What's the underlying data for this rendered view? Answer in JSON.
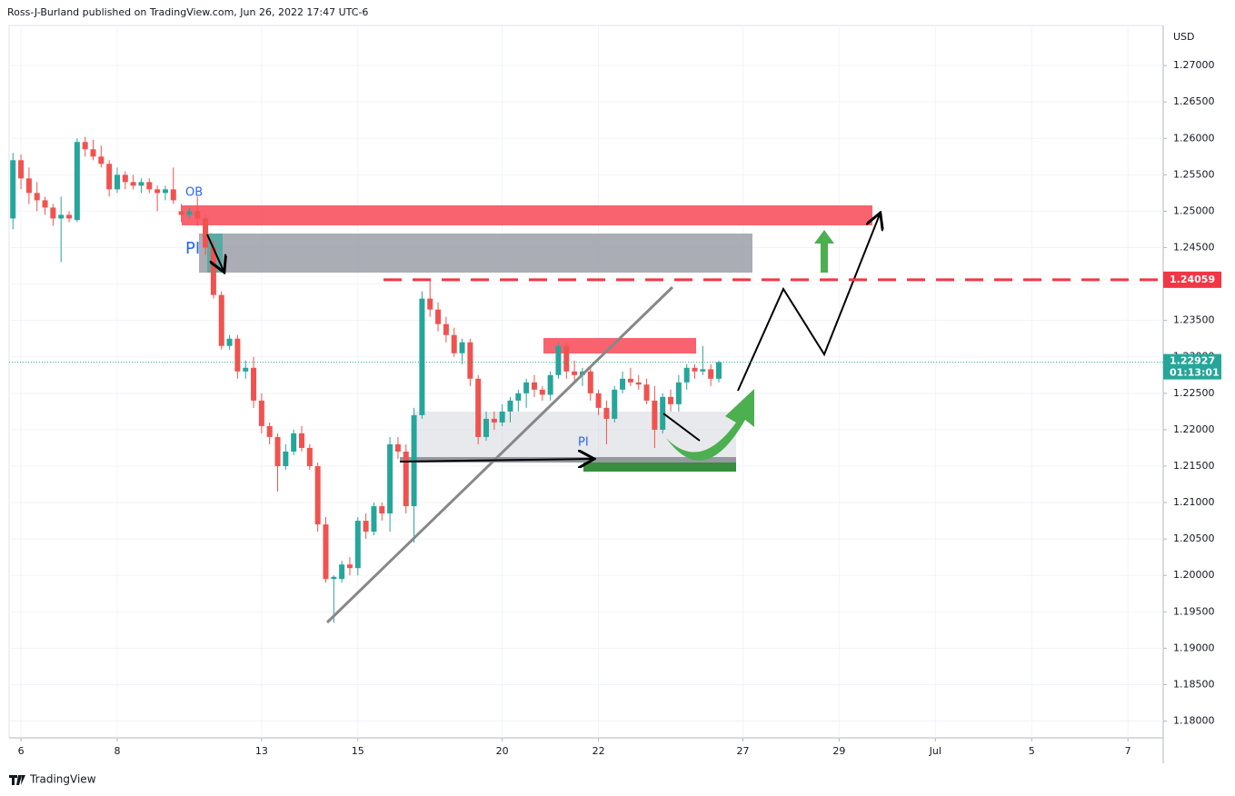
{
  "header": "Ross-J-Burland published on TradingView.com, Jun 26, 2022 17:47 UTC-6",
  "brand": "TradingView",
  "chart_data": {
    "type": "candlestick",
    "currency": "USD",
    "up_color": "#26a69a",
    "down_color": "#ef5350",
    "grid": true,
    "ylim": [
      1.1777,
      1.2755
    ],
    "yticks": [
      {
        "value": 1.18,
        "label": "1.18000"
      },
      {
        "value": 1.185,
        "label": "1.18500"
      },
      {
        "value": 1.19,
        "label": "1.19000"
      },
      {
        "value": 1.195,
        "label": "1.19500"
      },
      {
        "value": 1.2,
        "label": "1.20000"
      },
      {
        "value": 1.205,
        "label": "1.20500"
      },
      {
        "value": 1.21,
        "label": "1.21000"
      },
      {
        "value": 1.215,
        "label": "1.21500"
      },
      {
        "value": 1.22,
        "label": "1.22000"
      },
      {
        "value": 1.225,
        "label": "1.22500"
      },
      {
        "value": 1.23,
        "label": "1.23000"
      },
      {
        "value": 1.235,
        "label": "1.23500"
      },
      {
        "value": 1.24,
        "label": "1.24000"
      },
      {
        "value": 1.245,
        "label": "1.24500"
      },
      {
        "value": 1.25,
        "label": "1.25000"
      },
      {
        "value": 1.255,
        "label": "1.25500"
      },
      {
        "value": 1.26,
        "label": "1.26000"
      },
      {
        "value": 1.265,
        "label": "1.26500"
      },
      {
        "value": 1.27,
        "label": "1.27000"
      }
    ],
    "xlim": [
      -0.48,
      143.4
    ],
    "xticks": [
      {
        "value": 1,
        "label": "6"
      },
      {
        "value": 13,
        "label": "8"
      },
      {
        "value": 31,
        "label": "13"
      },
      {
        "value": 43,
        "label": "15"
      },
      {
        "value": 61,
        "label": "20"
      },
      {
        "value": 73,
        "label": "22"
      },
      {
        "value": 91,
        "label": "27"
      },
      {
        "value": 103,
        "label": "29"
      },
      {
        "value": 115,
        "label": "Jul"
      },
      {
        "value": 127,
        "label": "5"
      },
      {
        "value": 139,
        "label": "7"
      }
    ],
    "price_line": {
      "value": 1.24059,
      "color": "#f23645"
    },
    "last_price": {
      "value": 1.22927,
      "countdown": "01:13:01"
    },
    "annotations": [
      "OB",
      "PI",
      "PI"
    ],
    "ohlc": [
      [
        1.249,
        1.258,
        1.2475,
        1.257
      ],
      [
        1.257,
        1.2578,
        1.253,
        1.2545
      ],
      [
        1.2545,
        1.256,
        1.251,
        1.2525
      ],
      [
        1.2525,
        1.254,
        1.25,
        1.2515
      ],
      [
        1.2515,
        1.252,
        1.2495,
        1.2505
      ],
      [
        1.2505,
        1.251,
        1.248,
        1.249
      ],
      [
        1.249,
        1.252,
        1.243,
        1.2495
      ],
      [
        1.2495,
        1.25,
        1.2485,
        1.249
      ],
      [
        1.2488,
        1.26,
        1.2485,
        1.2595
      ],
      [
        1.2595,
        1.2602,
        1.2575,
        1.2585
      ],
      [
        1.2585,
        1.2598,
        1.257,
        1.2575
      ],
      [
        1.2575,
        1.259,
        1.256,
        1.2565
      ],
      [
        1.2565,
        1.257,
        1.252,
        1.253
      ],
      [
        1.253,
        1.256,
        1.2525,
        1.255
      ],
      [
        1.255,
        1.2555,
        1.253,
        1.254
      ],
      [
        1.254,
        1.255,
        1.253,
        1.2535
      ],
      [
        1.2535,
        1.2545,
        1.2525,
        1.254
      ],
      [
        1.254,
        1.2545,
        1.2525,
        1.253
      ],
      [
        1.253,
        1.2535,
        1.25,
        1.2525
      ],
      [
        1.2525,
        1.2535,
        1.2515,
        1.253
      ],
      [
        1.253,
        1.256,
        1.251,
        1.2515
      ],
      [
        1.25,
        1.251,
        1.2485,
        1.2495
      ],
      [
        1.2495,
        1.2505,
        1.249,
        1.25
      ],
      [
        1.25,
        1.252,
        1.248,
        1.249
      ],
      [
        1.249,
        1.2495,
        1.244,
        1.245
      ],
      [
        1.245,
        1.246,
        1.238,
        1.2385
      ],
      [
        1.2385,
        1.239,
        1.231,
        1.2315
      ],
      [
        1.2315,
        1.233,
        1.231,
        1.2325
      ],
      [
        1.2325,
        1.233,
        1.227,
        1.228
      ],
      [
        1.228,
        1.2295,
        1.227,
        1.2285
      ],
      [
        1.2285,
        1.23,
        1.223,
        1.224
      ],
      [
        1.224,
        1.225,
        1.2195,
        1.2205
      ],
      [
        1.2205,
        1.221,
        1.218,
        1.219
      ],
      [
        1.219,
        1.2195,
        1.2115,
        1.215
      ],
      [
        1.215,
        1.218,
        1.2145,
        1.217
      ],
      [
        1.217,
        1.22,
        1.2165,
        1.2195
      ],
      [
        1.2195,
        1.2205,
        1.217,
        1.2175
      ],
      [
        1.2175,
        1.218,
        1.2145,
        1.215
      ],
      [
        1.215,
        1.2155,
        1.206,
        1.207
      ],
      [
        1.207,
        1.208,
        1.199,
        1.1995
      ],
      [
        1.1995,
        1.2,
        1.1935,
        1.1998
      ],
      [
        1.1995,
        1.202,
        1.199,
        1.2015
      ],
      [
        1.2015,
        1.2025,
        1.2,
        1.201
      ],
      [
        1.201,
        1.208,
        1.2,
        1.2075
      ],
      [
        1.2075,
        1.2085,
        1.205,
        1.206
      ],
      [
        1.206,
        1.21,
        1.2055,
        1.2095
      ],
      [
        1.2095,
        1.21,
        1.2075,
        1.2085
      ],
      [
        1.2085,
        1.219,
        1.206,
        1.218
      ],
      [
        1.218,
        1.219,
        1.216,
        1.217
      ],
      [
        1.217,
        1.218,
        1.2085,
        1.2095
      ],
      [
        1.2095,
        1.223,
        1.2045,
        1.222
      ],
      [
        1.222,
        1.239,
        1.2215,
        1.238
      ],
      [
        1.238,
        1.2405,
        1.2355,
        1.2365
      ],
      [
        1.2365,
        1.2375,
        1.2335,
        1.2345
      ],
      [
        1.2345,
        1.2355,
        1.232,
        1.233
      ],
      [
        1.233,
        1.234,
        1.23,
        1.2305
      ],
      [
        1.2305,
        1.2325,
        1.229,
        1.232
      ],
      [
        1.232,
        1.2325,
        1.226,
        1.227
      ],
      [
        1.227,
        1.2275,
        1.218,
        1.219
      ],
      [
        1.219,
        1.2225,
        1.2185,
        1.2215
      ],
      [
        1.2215,
        1.2225,
        1.22,
        1.221
      ],
      [
        1.221,
        1.2235,
        1.2205,
        1.2225
      ],
      [
        1.2225,
        1.2245,
        1.221,
        1.224
      ],
      [
        1.224,
        1.2255,
        1.2225,
        1.225
      ],
      [
        1.225,
        1.227,
        1.223,
        1.2265
      ],
      [
        1.2265,
        1.2275,
        1.2245,
        1.2255
      ],
      [
        1.2255,
        1.226,
        1.224,
        1.2248
      ],
      [
        1.2248,
        1.228,
        1.224,
        1.2275
      ],
      [
        1.2275,
        1.232,
        1.227,
        1.2315
      ],
      [
        1.2315,
        1.232,
        1.227,
        1.228
      ],
      [
        1.228,
        1.2295,
        1.2265,
        1.2275
      ],
      [
        1.2275,
        1.2285,
        1.226,
        1.228
      ],
      [
        1.228,
        1.2285,
        1.224,
        1.225
      ],
      [
        1.225,
        1.2255,
        1.222,
        1.223
      ],
      [
        1.223,
        1.224,
        1.218,
        1.2215
      ],
      [
        1.2215,
        1.226,
        1.221,
        1.2255
      ],
      [
        1.2255,
        1.228,
        1.225,
        1.227
      ],
      [
        1.227,
        1.2285,
        1.226,
        1.2265
      ],
      [
        1.2265,
        1.2275,
        1.2255,
        1.2262
      ],
      [
        1.2262,
        1.227,
        1.2235,
        1.224
      ],
      [
        1.224,
        1.226,
        1.2175,
        1.22
      ],
      [
        1.22,
        1.225,
        1.2195,
        1.2245
      ],
      [
        1.2245,
        1.2255,
        1.2225,
        1.2235
      ],
      [
        1.2235,
        1.2275,
        1.2225,
        1.2265
      ],
      [
        1.2265,
        1.229,
        1.2255,
        1.2285
      ],
      [
        1.2285,
        1.229,
        1.227,
        1.228
      ],
      [
        1.228,
        1.2315,
        1.2275,
        1.2283
      ],
      [
        1.2283,
        1.229,
        1.226,
        1.227
      ],
      [
        1.227,
        1.2295,
        1.2265,
        1.22927
      ]
    ]
  }
}
